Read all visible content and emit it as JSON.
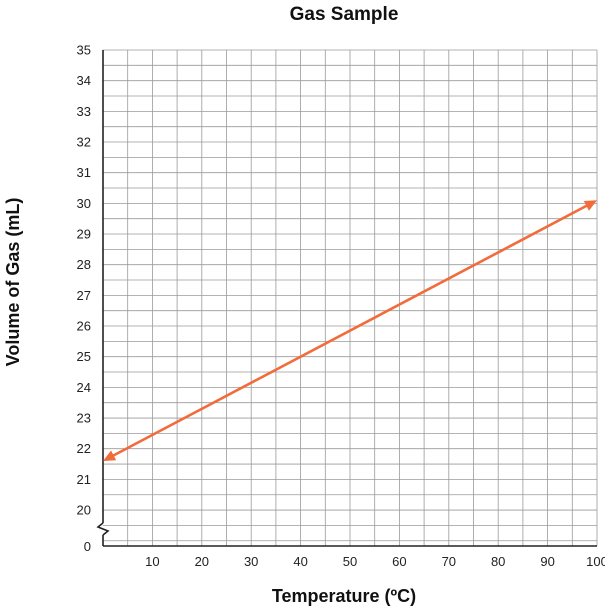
{
  "chart_data": {
    "type": "line",
    "title": "Gas Sample",
    "xlabel": "Temperature (ºC)",
    "ylabel": "Volume of Gas (mL)",
    "xlim": [
      0,
      100
    ],
    "ylim": [
      19,
      35
    ],
    "x_ticks": [
      10,
      20,
      30,
      40,
      50,
      60,
      70,
      80,
      90,
      100
    ],
    "y_ticks": [
      20,
      21,
      22,
      23,
      24,
      25,
      26,
      27,
      28,
      29,
      30,
      31,
      32,
      33,
      34,
      35
    ],
    "origin_label": "0",
    "y_axis_break": true,
    "grid": true,
    "series": [
      {
        "color": "#f26b3a",
        "x": [
          0,
          100
        ],
        "y": [
          21.6,
          30.1
        ],
        "arrows": "both"
      }
    ]
  }
}
